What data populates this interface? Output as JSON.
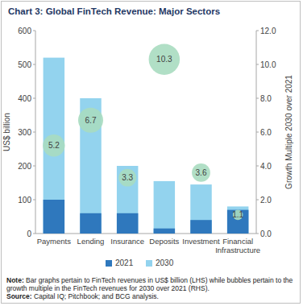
{
  "chart_data": {
    "type": "bar",
    "title": "Chart 3: Global FinTech Revenue: Major Sectors",
    "y_label": "US$ billion",
    "y2_label": "Growth Multiple 2030 over 2021",
    "note": "Note: Bar graphs pertain to FinTech revenues in US$ billion (LHS) while bubbles pertain to the growth multiple in the FinTech revenues for 2030 over 2021 (RHS).",
    "source": "Source: Capital IQ; Pitchbook; and BCG analysis.",
    "categories": [
      "Payments",
      "Lending",
      "Insurance",
      "Deposits",
      "Investment",
      "Financial Infrastructure"
    ],
    "stacked": false,
    "legend": "bottom",
    "grid": false,
    "ylim": [
      0,
      600
    ],
    "yticks": [
      0,
      100,
      200,
      300,
      400,
      500,
      600
    ],
    "y2lim": [
      0,
      12
    ],
    "y2ticks": [
      {
        "value": 0,
        "label": "0.0"
      },
      {
        "value": 2,
        "label": "2.0"
      },
      {
        "value": 4,
        "label": "4.0"
      },
      {
        "value": 6,
        "label": "6.0"
      },
      {
        "value": 8,
        "label": "8.0"
      },
      {
        "value": 10,
        "label": "10.0"
      },
      {
        "value": 12,
        "label": "12.0"
      }
    ],
    "series": [
      {
        "name": "2021",
        "type": "bar",
        "color": "#2f78bd",
        "values": [
          100,
          60,
          60,
          15,
          40,
          70
        ]
      },
      {
        "name": "2030",
        "type": "bar",
        "color": "#93d3ee",
        "values": [
          520,
          400,
          200,
          155,
          145,
          80
        ]
      },
      {
        "type": "bubble",
        "axis": "y2",
        "color": "#a9dcc0",
        "data_labels": true,
        "values": [
          5.2,
          6.7,
          3.3,
          10.3,
          3.6,
          1.1
        ]
      }
    ]
  }
}
